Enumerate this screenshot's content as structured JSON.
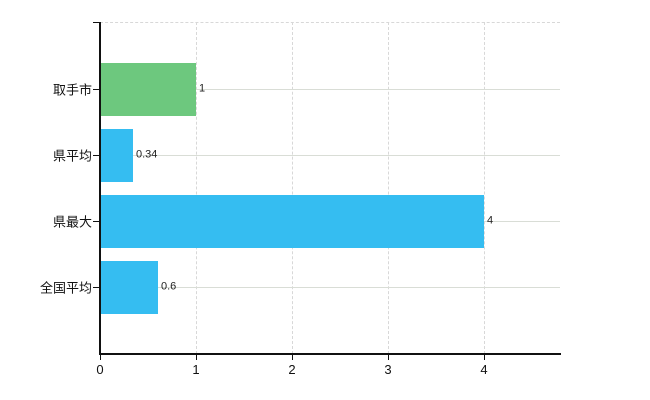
{
  "chart_data": {
    "type": "bar",
    "orientation": "horizontal",
    "title": "",
    "xlabel": "",
    "ylabel": "",
    "categories": [
      "取手市",
      "県平均",
      "県最大",
      "全国平均"
    ],
    "values": [
      1,
      0.34,
      4,
      0.6
    ],
    "value_labels": [
      "1",
      "0.34",
      "4",
      "0.6"
    ],
    "bar_colors": [
      "#6dc87e",
      "#35bdf1",
      "#35bdf1",
      "#35bdf1"
    ],
    "x_ticks": [
      0,
      1,
      2,
      3,
      4
    ],
    "xlim": [
      0,
      4.79
    ],
    "grid": true,
    "legend": "none",
    "background_color": "#ffffff",
    "axis_color": "#111111",
    "gridline_color": "#d8d8d8"
  }
}
